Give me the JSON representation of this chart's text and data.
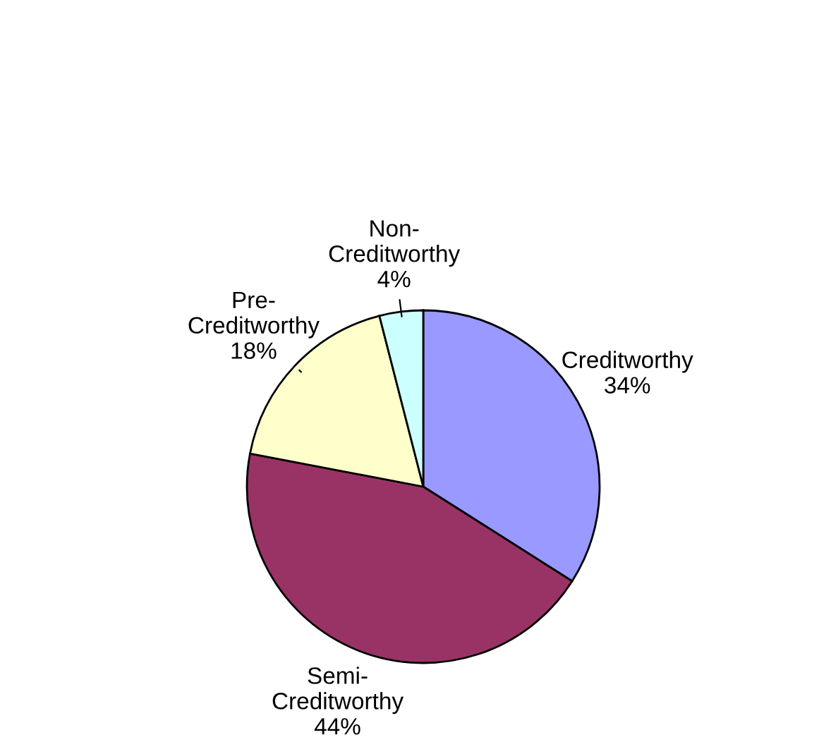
{
  "chart_data": {
    "type": "pie",
    "categories": [
      "Creditworthy",
      "Semi-Creditworthy",
      "Pre-Creditworthy",
      "Non-Creditworthy"
    ],
    "values": [
      34,
      44,
      18,
      4
    ],
    "value_labels": [
      "34%",
      "44%",
      "18%",
      "4%"
    ],
    "colors": [
      "#9999ff",
      "#993366",
      "#ffffcc",
      "#ccffff"
    ],
    "legend": false
  }
}
